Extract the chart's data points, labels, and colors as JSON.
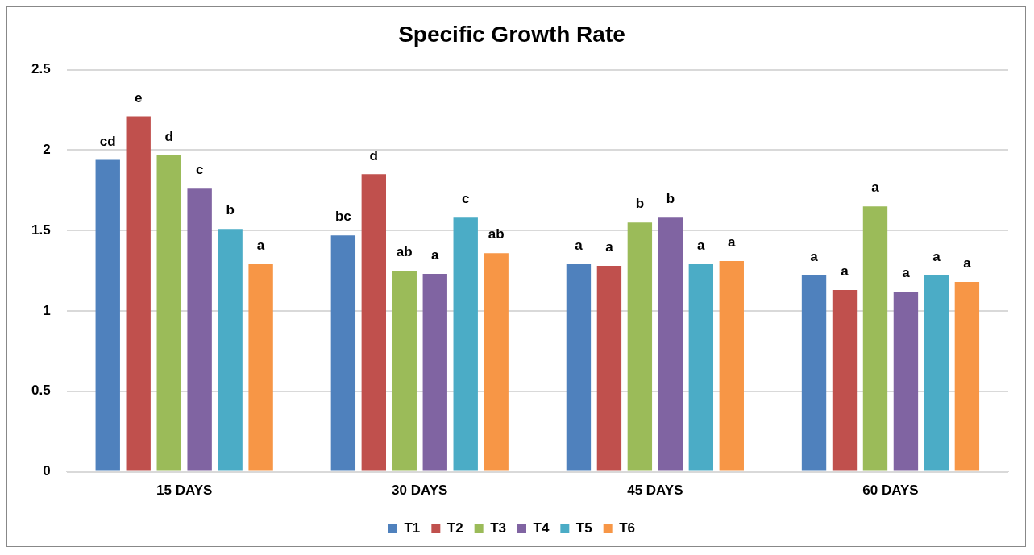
{
  "chart_data": {
    "type": "bar",
    "title": "Specific Growth Rate",
    "categories": [
      "15 DAYS",
      "30 DAYS",
      "45 DAYS",
      "60 DAYS"
    ],
    "series": [
      {
        "name": "T1",
        "color": "#4f81bd",
        "values": [
          1.94,
          1.47,
          1.29,
          1.22
        ],
        "value_labels": [
          "cd",
          "bc",
          "a",
          "a"
        ]
      },
      {
        "name": "T2",
        "color": "#c0504d",
        "values": [
          2.21,
          1.85,
          1.28,
          1.13
        ],
        "value_labels": [
          "e",
          "d",
          "a",
          "a"
        ]
      },
      {
        "name": "T3",
        "color": "#9bbb59",
        "values": [
          1.97,
          1.25,
          1.55,
          1.65
        ],
        "value_labels": [
          "d",
          "ab",
          "b",
          "a"
        ]
      },
      {
        "name": "T4",
        "color": "#8064a2",
        "values": [
          1.76,
          1.23,
          1.58,
          1.12
        ],
        "value_labels": [
          "c",
          "a",
          "b",
          "a"
        ]
      },
      {
        "name": "T5",
        "color": "#4bacc6",
        "values": [
          1.51,
          1.58,
          1.29,
          1.22
        ],
        "value_labels": [
          "b",
          "c",
          "a",
          "a"
        ]
      },
      {
        "name": "T6",
        "color": "#f79646",
        "values": [
          1.29,
          1.36,
          1.31,
          1.18
        ],
        "value_labels": [
          "a",
          "ab",
          "a",
          "a"
        ]
      }
    ],
    "ylim": [
      0,
      2.5
    ],
    "yticks": [
      0,
      0.5,
      1,
      1.5,
      2,
      2.5
    ],
    "grid": "y",
    "legend": "bottom"
  }
}
